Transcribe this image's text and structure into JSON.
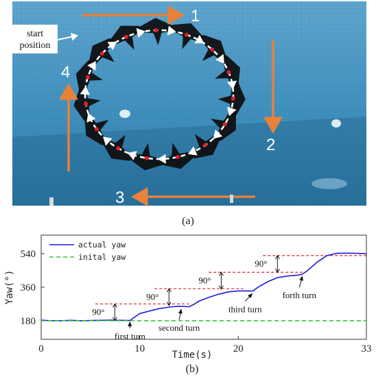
{
  "panel_a": {
    "caption": "(a)",
    "start_label_line1": "start",
    "start_label_line2": "position",
    "step_labels": [
      "1",
      "2",
      "3",
      "4"
    ],
    "colors": {
      "water": "#3f8fbd",
      "arrow": "#e8813a",
      "fish": "#0d0d0d",
      "marker": "#e0202a",
      "path": "#ffffff"
    }
  },
  "panel_b": {
    "caption": "(b)",
    "angle_label": "90°",
    "annotations": [
      "first turn",
      "second turn",
      "third turn",
      "forth turn"
    ],
    "colors": {
      "actual": "#1a1adc",
      "initial": "#2ecc2e",
      "ref": "#e02020"
    }
  },
  "chart_data": {
    "type": "line",
    "xlabel": "Time(s)",
    "ylabel": "Yaw(°)",
    "xlim": [
      0,
      33
    ],
    "ylim": [
      80,
      640
    ],
    "xticks": [
      0,
      10,
      20,
      33
    ],
    "yticks": [
      180,
      360,
      540
    ],
    "legend": "top-left",
    "series": [
      {
        "name": "actual yaw",
        "style": "solid",
        "x": [
          0,
          1,
          2,
          3,
          4,
          5,
          6,
          7,
          8,
          9,
          9.5,
          10,
          11,
          12,
          13,
          14,
          15,
          15.5,
          16,
          17,
          18,
          19,
          20,
          21,
          21.5,
          22,
          23,
          24,
          25,
          26,
          26.5,
          27,
          28,
          29,
          30,
          31,
          32,
          33
        ],
        "y": [
          183,
          180,
          180,
          182,
          180,
          181,
          182,
          183,
          182,
          181,
          200,
          218,
          232,
          245,
          253,
          258,
          255,
          268,
          285,
          305,
          322,
          335,
          340,
          340,
          340,
          360,
          390,
          412,
          420,
          425,
          430,
          448,
          495,
          530,
          542,
          543,
          542,
          540
        ]
      },
      {
        "name": "inital yaw",
        "style": "dashed",
        "x": [
          0,
          33
        ],
        "y": [
          180,
          180
        ]
      }
    ],
    "reference_levels": [
      {
        "y": 270,
        "x_start": 5.5,
        "x_end": 15,
        "label": "90°",
        "label_x": 5.8,
        "from": 180
      },
      {
        "y": 352,
        "x_start": 11.5,
        "x_end": 20.5,
        "label": "90°",
        "label_x": 11.3,
        "from": 262
      },
      {
        "y": 440,
        "x_start": 17,
        "x_end": 26.5,
        "label": "90°",
        "label_x": 16.6,
        "from": 350
      },
      {
        "y": 530,
        "x_start": 22.5,
        "x_end": 33,
        "label": "90°",
        "label_x": 22.3,
        "from": 440
      }
    ],
    "turn_annotations": [
      {
        "text": "first turn",
        "x": 9,
        "y": 180,
        "tx": 9,
        "ty": 95
      },
      {
        "text": "second turn",
        "x": 14.2,
        "y": 248,
        "tx": 14,
        "ty": 140
      },
      {
        "text": "third turn",
        "x": 21.4,
        "y": 332,
        "tx": 20.7,
        "ty": 240
      },
      {
        "text": "forth turn",
        "x": 26.5,
        "y": 425,
        "tx": 26.2,
        "ty": 315
      }
    ]
  }
}
